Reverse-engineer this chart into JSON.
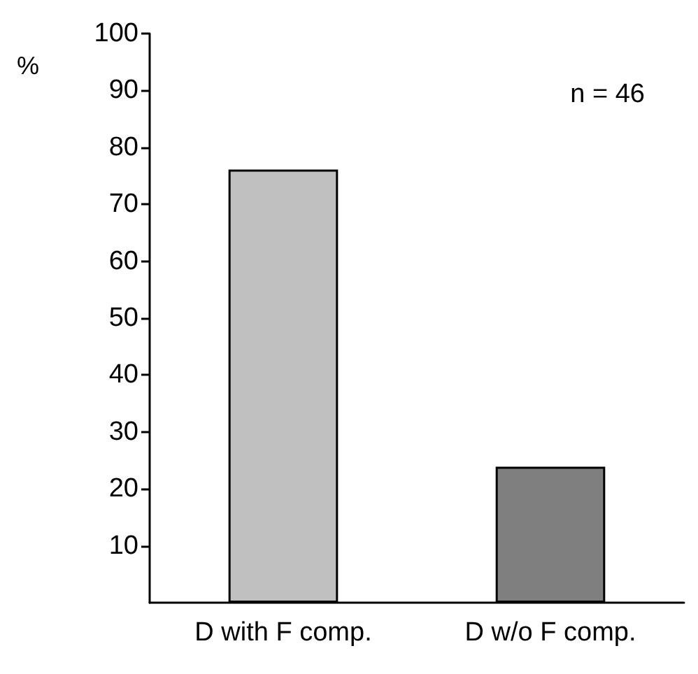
{
  "chart_data": {
    "type": "bar",
    "categories": [
      "D with F comp.",
      "D w/o F comp."
    ],
    "values": [
      76.1,
      23.9
    ],
    "colors": [
      "#c0c0c0",
      "#7f7f7f"
    ],
    "ylabel": "%",
    "ylim": [
      0,
      100
    ],
    "yticks": [
      10,
      20,
      30,
      40,
      50,
      60,
      70,
      80,
      90,
      100
    ],
    "grid": false,
    "annotations": [
      "n = 46"
    ]
  }
}
